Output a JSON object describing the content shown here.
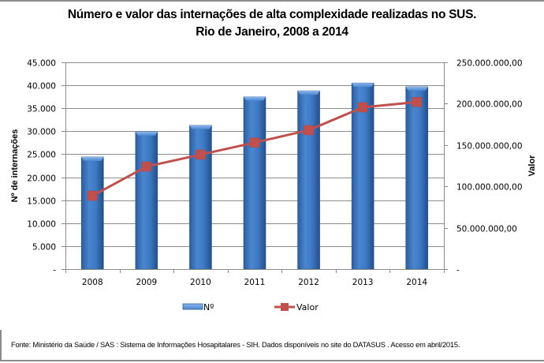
{
  "chart_data": {
    "type": "bar+line",
    "title": "Número e valor das internações de alta complexidade realizadas no SUS.",
    "subtitle": "Rio de Janeiro, 2008 a 2014",
    "categories": [
      "2008",
      "2009",
      "2010",
      "2011",
      "2012",
      "2013",
      "2014"
    ],
    "series": [
      {
        "name": "Nº",
        "type": "bar",
        "axis": "left",
        "color": "#3a74c0",
        "values": [
          24400,
          29900,
          31300,
          37500,
          38800,
          40500,
          39700
        ]
      },
      {
        "name": "Valor",
        "type": "line",
        "axis": "right",
        "color": "#c0504d",
        "values": [
          88700000,
          124000000,
          138400000,
          153000000,
          168000000,
          195600000,
          202000000
        ]
      }
    ],
    "y_left": {
      "label": "Nº de internações",
      "range": [
        0,
        45000
      ],
      "ticks": [
        0,
        5000,
        10000,
        15000,
        20000,
        25000,
        30000,
        35000,
        40000,
        45000
      ],
      "tick_labels": [
        "-",
        "5.000",
        "10.000",
        "15.000",
        "20.000",
        "25.000",
        "30.000",
        "35.000",
        "40.000",
        "45.000"
      ]
    },
    "y_right": {
      "label": "Valor",
      "range": [
        0,
        250000000
      ],
      "ticks": [
        0,
        50000000,
        100000000,
        150000000,
        200000000,
        250000000
      ],
      "tick_labels": [
        "-",
        "50.000.000,00",
        "100.000.000,00",
        "150.000.000,00",
        "200.000.000,00",
        "250.000.000,00"
      ]
    },
    "xlabel": "",
    "grid": true,
    "legend": {
      "position": "bottom",
      "entries": [
        "Nº",
        "Valor"
      ]
    }
  },
  "footnote": "Fonte:  Ministério da Saúde  / SAS : Sistema de Informações Hosapitalares - SIH. Dados disponíveis no site do DATASUS . Acesso em abril/2015."
}
